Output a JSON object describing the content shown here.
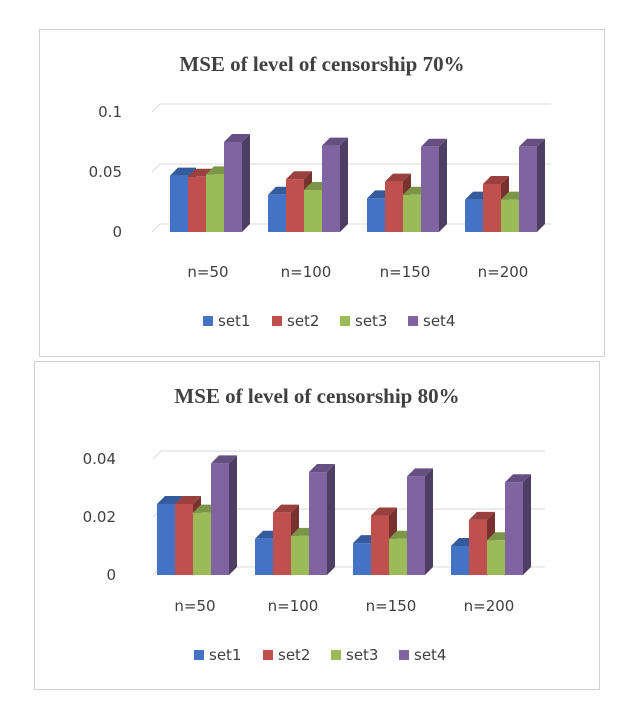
{
  "chart_data": [
    {
      "type": "bar",
      "title": "MSE of level of censorship 70%",
      "categories": [
        "n=50",
        "n=100",
        "n=150",
        "n=200"
      ],
      "yticks": [
        "0",
        "0.05",
        "0.1"
      ],
      "ylim": [
        0,
        0.1
      ],
      "grid": true,
      "legend_position": "bottom",
      "series": [
        {
          "name": "set1",
          "color": "#4472C4",
          "values": [
            0.047,
            0.031,
            0.028,
            0.027
          ]
        },
        {
          "name": "set2",
          "color": "#C0504D",
          "values": [
            0.046,
            0.044,
            0.042,
            0.04
          ]
        },
        {
          "name": "set3",
          "color": "#9BBB59",
          "values": [
            0.048,
            0.035,
            0.031,
            0.027
          ]
        },
        {
          "name": "set4",
          "color": "#8064A2",
          "values": [
            0.075,
            0.072,
            0.071,
            0.071
          ]
        }
      ]
    },
    {
      "type": "bar",
      "title": "MSE of level of censorship 80%",
      "categories": [
        "n=50",
        "n=100",
        "n=150",
        "n=200"
      ],
      "yticks": [
        "0",
        "0.02",
        "0.04"
      ],
      "ylim": [
        0,
        0.04
      ],
      "grid": true,
      "legend_position": "bottom",
      "series": [
        {
          "name": "set1",
          "color": "#4472C4",
          "values": [
            0.0245,
            0.0125,
            0.011,
            0.01
          ]
        },
        {
          "name": "set2",
          "color": "#C0504D",
          "values": [
            0.0245,
            0.0215,
            0.0205,
            0.019
          ]
        },
        {
          "name": "set3",
          "color": "#9BBB59",
          "values": [
            0.0215,
            0.0135,
            0.0125,
            0.012
          ]
        },
        {
          "name": "set4",
          "color": "#8064A2",
          "values": [
            0.0385,
            0.0355,
            0.034,
            0.032
          ]
        }
      ]
    }
  ]
}
